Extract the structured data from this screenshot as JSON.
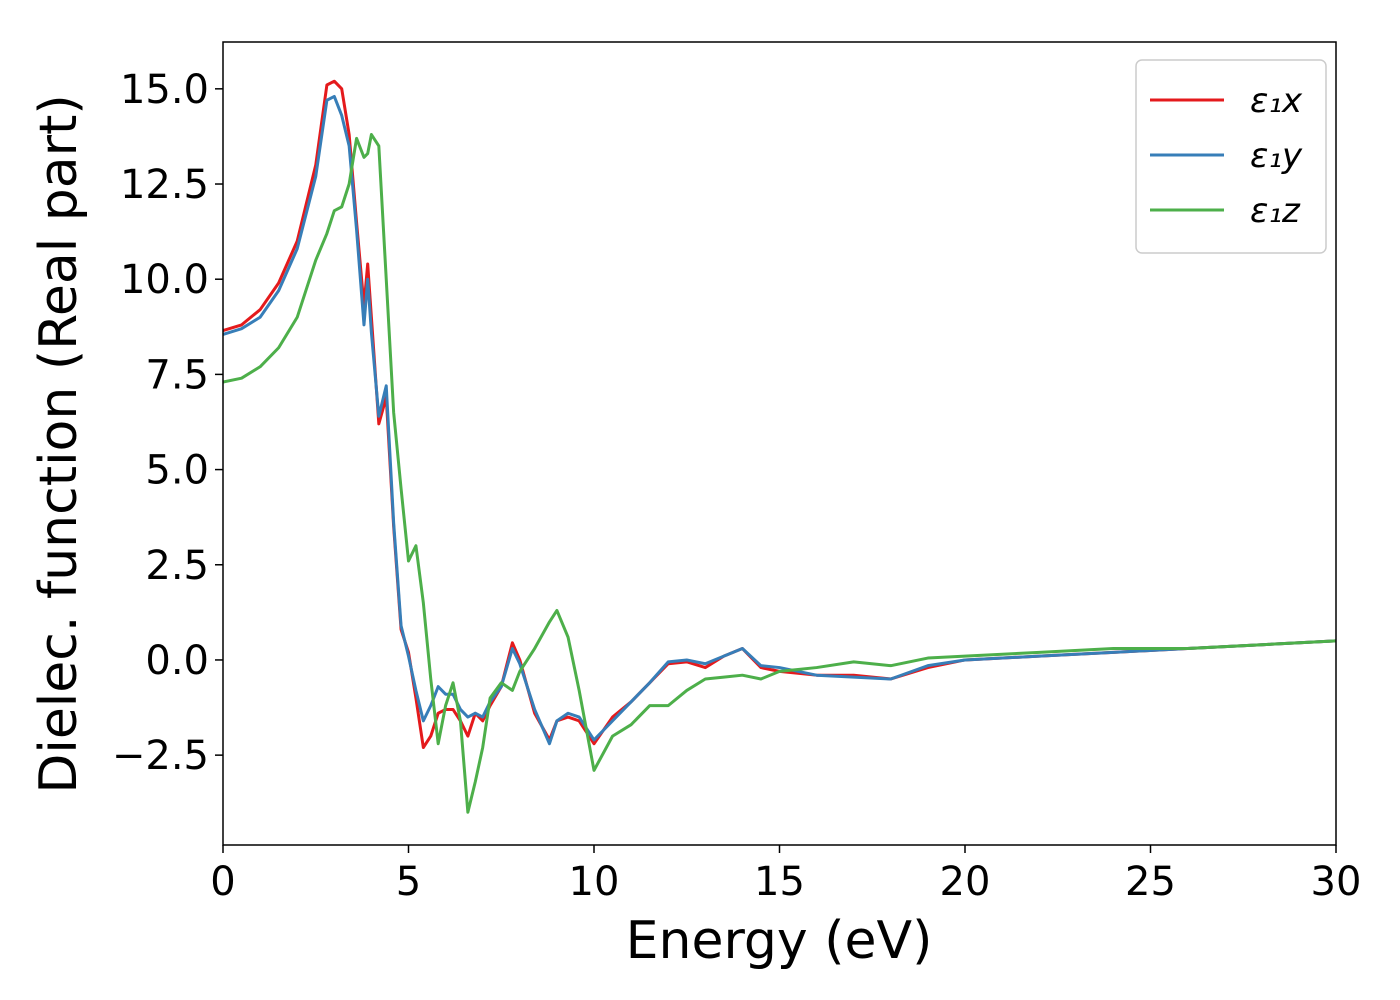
{
  "chart_data": {
    "type": "line",
    "xlabel": "Energy (eV)",
    "ylabel": "Dielec. function (Real part)",
    "x": [
      0,
      0.5,
      1,
      1.5,
      2,
      2.5,
      2.8,
      3,
      3.2,
      3.4,
      3.6,
      3.8,
      3.9,
      4.0,
      4.2,
      4.4,
      4.6,
      4.8,
      5.0,
      5.2,
      5.4,
      5.6,
      5.8,
      6.0,
      6.2,
      6.4,
      6.6,
      6.8,
      7.0,
      7.2,
      7.5,
      7.8,
      8.0,
      8.4,
      8.8,
      9.0,
      9.3,
      9.6,
      10.0,
      10.5,
      11,
      11.5,
      12,
      12.5,
      13,
      13.5,
      14,
      14.5,
      15,
      16,
      17,
      18,
      19,
      20,
      22,
      24,
      26,
      28,
      30
    ],
    "series": [
      {
        "name": "ε₁x",
        "color": "#e41a1c",
        "values": [
          8.65,
          8.8,
          9.2,
          9.9,
          11.0,
          13.0,
          15.1,
          15.2,
          15.0,
          13.8,
          11.5,
          9.3,
          10.4,
          9.0,
          6.2,
          6.9,
          3.5,
          0.8,
          0.2,
          -1.0,
          -2.3,
          -2.0,
          -1.4,
          -1.3,
          -1.3,
          -1.6,
          -2.0,
          -1.4,
          -1.6,
          -1.2,
          -0.7,
          0.45,
          0.0,
          -1.4,
          -2.1,
          -1.6,
          -1.5,
          -1.6,
          -2.2,
          -1.5,
          -1.1,
          -0.6,
          -0.1,
          -0.05,
          -0.2,
          0.1,
          0.3,
          -0.2,
          -0.3,
          -0.4,
          -0.4,
          -0.5,
          -0.2,
          0.0,
          0.1,
          0.2,
          0.3,
          0.4,
          0.5
        ]
      },
      {
        "name": "ε₁y",
        "color": "#377eb8",
        "values": [
          8.55,
          8.7,
          9.0,
          9.7,
          10.8,
          12.7,
          14.7,
          14.8,
          14.3,
          13.5,
          11.3,
          8.8,
          10.0,
          8.6,
          6.4,
          7.2,
          3.6,
          0.9,
          0.1,
          -0.8,
          -1.6,
          -1.2,
          -0.7,
          -0.9,
          -0.9,
          -1.3,
          -1.5,
          -1.4,
          -1.5,
          -1.1,
          -0.7,
          0.3,
          -0.1,
          -1.3,
          -2.2,
          -1.6,
          -1.4,
          -1.5,
          -2.1,
          -1.6,
          -1.1,
          -0.6,
          -0.05,
          0.0,
          -0.1,
          0.1,
          0.3,
          -0.15,
          -0.2,
          -0.4,
          -0.45,
          -0.5,
          -0.15,
          0.0,
          0.1,
          0.2,
          0.3,
          0.4,
          0.5
        ]
      },
      {
        "name": "ε₁z",
        "color": "#4daf4a",
        "values": [
          7.3,
          7.4,
          7.7,
          8.2,
          9.0,
          10.5,
          11.2,
          11.8,
          11.9,
          12.5,
          13.7,
          13.2,
          13.3,
          13.8,
          13.5,
          10.0,
          6.5,
          4.5,
          2.6,
          3.0,
          1.5,
          -0.5,
          -2.2,
          -1.2,
          -0.6,
          -1.6,
          -4.0,
          -3.2,
          -2.3,
          -1.0,
          -0.6,
          -0.8,
          -0.3,
          0.3,
          1.0,
          1.3,
          0.6,
          -0.8,
          -2.9,
          -2.0,
          -1.7,
          -1.2,
          -1.2,
          -0.8,
          -0.5,
          -0.45,
          -0.4,
          -0.5,
          -0.3,
          -0.2,
          -0.05,
          -0.15,
          0.05,
          0.1,
          0.2,
          0.3,
          0.3,
          0.4,
          0.5
        ]
      }
    ],
    "xlim": [
      0,
      30
    ],
    "xticks": [
      0,
      5,
      10,
      15,
      20,
      25,
      30
    ],
    "ylim": [
      -4.86,
      16.23
    ],
    "yticks": [
      {
        "value": -2.5,
        "label": "−2.5"
      },
      {
        "value": 0,
        "label": "0.0"
      },
      2.5,
      {
        "value": 5,
        "label": "5.0"
      },
      7.5,
      {
        "value": 10,
        "label": "10.0"
      },
      12.5,
      {
        "value": 15,
        "label": "15.0"
      }
    ],
    "legend": "upper right",
    "grid": false
  }
}
